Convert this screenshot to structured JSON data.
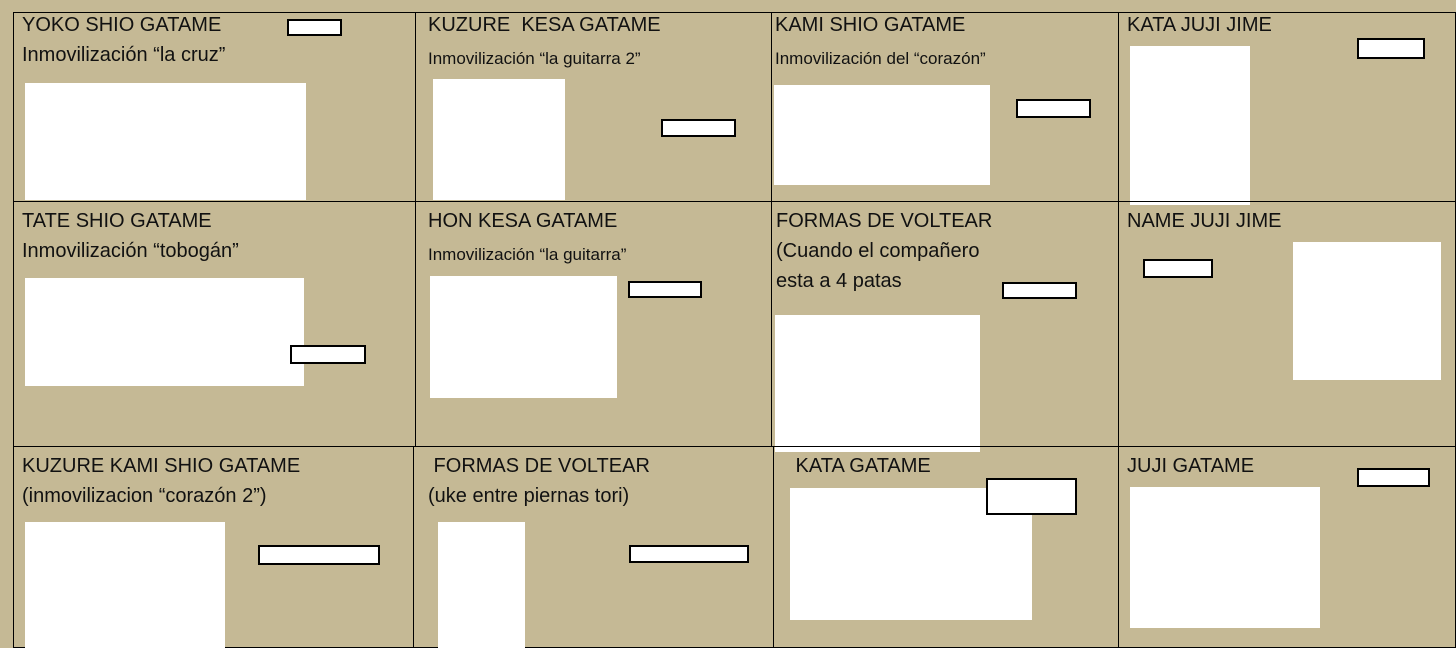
{
  "cells": [
    {
      "lines": [
        "YOKO SHIO GATAME",
        "Inmovilización “la cruz”"
      ]
    },
    {
      "lines": [
        "KUZURE  KESA GATAME",
        "Inmovilización “la guitarra 2”"
      ]
    },
    {
      "lines": [
        "KAMI SHIO GATAME",
        "Inmovilización del “corazón”"
      ]
    },
    {
      "lines": [
        "KATA JUJI JIME"
      ]
    },
    {
      "lines": [
        "TATE SHIO GATAME",
        "Inmovilización “tobogán”"
      ]
    },
    {
      "lines": [
        "HON KESA GATAME",
        "Inmovilización “la guitarra”"
      ]
    },
    {
      "lines": [
        "FORMAS DE VOLTEAR",
        "(Cuando el compañero",
        "esta a 4 patas"
      ]
    },
    {
      "lines": [
        "NAME JUJI JIME"
      ]
    },
    {
      "lines": [
        "KUZURE KAMI SHIO GATAME",
        "(inmovilizacion “corazón 2”)"
      ]
    },
    {
      "lines": [
        " FORMAS DE VOLTEAR",
        "(uke entre piernas tori)"
      ]
    },
    {
      "lines": [
        " KATA GATAME"
      ]
    },
    {
      "lines": [
        "JUJI GATAME"
      ]
    }
  ]
}
